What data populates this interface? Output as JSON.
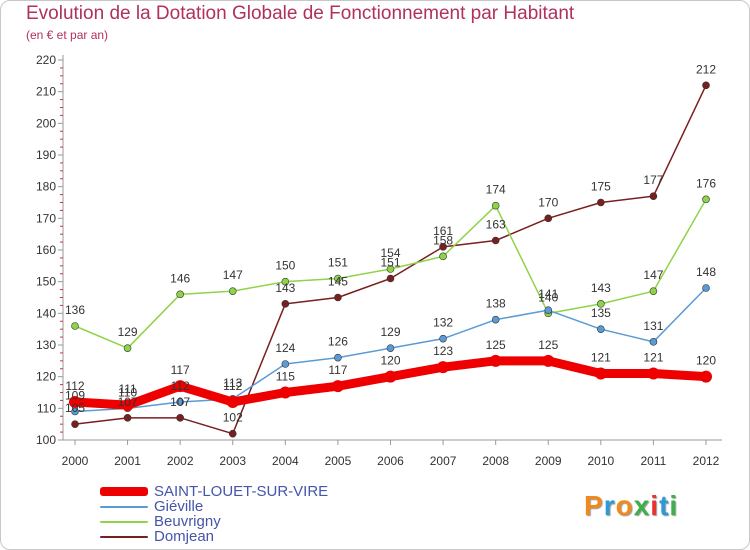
{
  "title": "Evolution de la Dotation Globale de Fonctionnement par Habitant",
  "subtitle": "(en € et par an)",
  "logo": {
    "text": "Proxiti",
    "colors": [
      "#f08a1c",
      "#2c9ad6",
      "#f08a1c",
      "#3cb04a",
      "#e7352e",
      "#2c9ad6",
      "#3cb04a"
    ]
  },
  "chart_data": {
    "type": "line",
    "title": "Evolution de la Dotation Globale de Fonctionnement par Habitant",
    "subtitle": "(en € et par an)",
    "x": [
      2000,
      2001,
      2002,
      2003,
      2004,
      2005,
      2006,
      2007,
      2008,
      2009,
      2010,
      2011,
      2012
    ],
    "ylim": [
      100,
      220
    ],
    "yticks": [
      100,
      110,
      120,
      130,
      140,
      150,
      160,
      170,
      180,
      190,
      200,
      210,
      220
    ],
    "grid": false,
    "legend": "bottom-left",
    "series": [
      {
        "name": "SAINT-LOUET-SUR-VIRE",
        "color": "#ee0000",
        "values": [
          112,
          111,
          117,
          112,
          115,
          117,
          120,
          123,
          125,
          125,
          121,
          121,
          120
        ]
      },
      {
        "name": "Giéville",
        "color": "#5a9bd4",
        "values": [
          109,
          110,
          112,
          113,
          124,
          126,
          129,
          132,
          138,
          141,
          135,
          131,
          148
        ]
      },
      {
        "name": "Beuvrigny",
        "color": "#8ed448",
        "values": [
          136,
          129,
          146,
          147,
          150,
          151,
          154,
          158,
          174,
          140,
          143,
          147,
          176
        ]
      },
      {
        "name": "Domjean",
        "color": "#7a1f1f",
        "values": [
          105,
          107,
          107,
          102,
          143,
          145,
          151,
          161,
          163,
          170,
          175,
          177,
          212
        ]
      }
    ]
  }
}
